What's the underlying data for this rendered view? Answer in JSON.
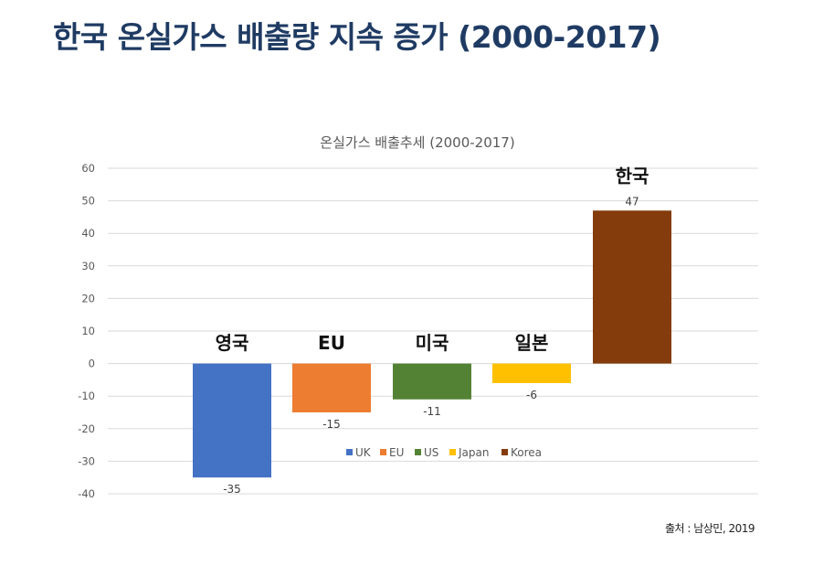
{
  "page": {
    "title": "한국 온실가스 배출량 지속 증가 (2000-2017)",
    "source": "출처 : 남상민, 2019"
  },
  "chart_data": {
    "type": "bar",
    "title": "온실가스 배출추세 (2000-2017)",
    "categories": [
      "UK",
      "EU",
      "US",
      "Japan",
      "Korea"
    ],
    "values": [
      -35,
      -15,
      -11,
      -6,
      47
    ],
    "colors": [
      "#4472c4",
      "#ed7d31",
      "#548235",
      "#ffc000",
      "#843c0c"
    ],
    "annotations": [
      "영국",
      "EU",
      "미국",
      "일본",
      "한국"
    ],
    "ylim": [
      -40,
      60
    ],
    "yticks": [
      60,
      50,
      40,
      30,
      20,
      10,
      0,
      -10,
      -20,
      -30,
      -40
    ],
    "grid": true,
    "legend": "bottom-inside",
    "xlabel": "",
    "ylabel": ""
  }
}
